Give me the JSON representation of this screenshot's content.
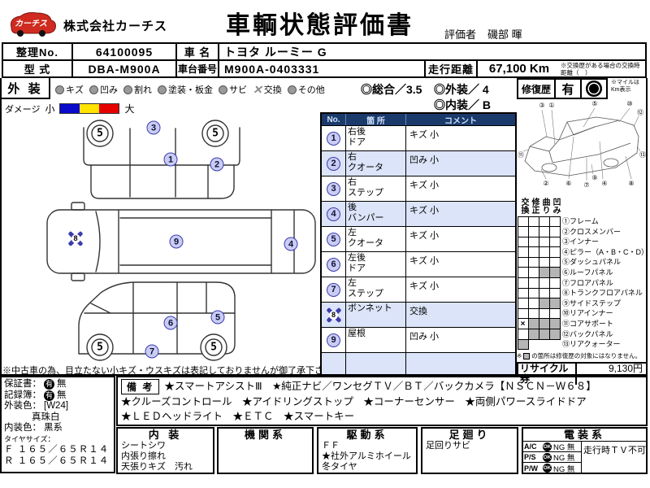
{
  "colors": {
    "table_header": "#1b3a6c",
    "table_header_text": "#d0e0f8",
    "row_shade": "#dbe4f8",
    "marker_fill": "#c9cdf3",
    "marker_border": "#3c3cae",
    "gray_cell": "#b5b5b5",
    "logo_red": "#cf2b20",
    "damage_small": "#0a0acc",
    "damage_mid": "#ffe400",
    "damage_large": "#e60000"
  },
  "header": {
    "logo_text": "カーチス",
    "company": "株式会社カーチス",
    "title": "車輌状態評価書",
    "evaluator_label": "評価者",
    "evaluator_name": "磯部 暉"
  },
  "info": {
    "no_label": "整理No.",
    "no_value": "64100095",
    "car_label": "車 名",
    "car_value": "トヨタ ルーミー G",
    "model_label": "型 式",
    "model_value": "DBA-M900A",
    "chassis_label": "車台番号",
    "chassis_value": "M900A-0403331",
    "mileage_label": "走行距離",
    "mileage_value": "67,100 Km",
    "mileage_note": "※交換歴がある場合の交換時距離（　）"
  },
  "legend": {
    "section_label": "外 装",
    "items": [
      {
        "label": "キズ"
      },
      {
        "label": "凹み"
      },
      {
        "label": "割れ"
      },
      {
        "label": "塗装・板金"
      },
      {
        "label": "サビ"
      },
      {
        "label": "交換"
      },
      {
        "label": "その他"
      }
    ],
    "rating_overall": "◎総合／3.5",
    "rating_exterior": "◎外装／ 4",
    "rating_interior": "◎内装／ B",
    "damage_label": "ダメージ",
    "damage_small": "小",
    "damage_large": "大"
  },
  "repair": {
    "label": "修復歴",
    "value": "有",
    "note": "※マイルはKm表示"
  },
  "damage_table": {
    "headers": [
      "No.",
      "箇 所",
      "コメント"
    ],
    "rows": [
      {
        "no": "1",
        "part": "右後\nドア",
        "comment": "キズ 小"
      },
      {
        "no": "2",
        "part": "右\nクオータ",
        "comment": "凹み 小"
      },
      {
        "no": "3",
        "part": "右\nステップ",
        "comment": "キズ 小"
      },
      {
        "no": "4",
        "part": "後\nバンパー",
        "comment": "キズ 小"
      },
      {
        "no": "5",
        "part": "左\nクオータ",
        "comment": "キズ 小"
      },
      {
        "no": "6",
        "part": "左後\nドア",
        "comment": "キズ 小"
      },
      {
        "no": "7",
        "part": "左\nステップ",
        "comment": "キズ 小"
      },
      {
        "no": "8",
        "part": "ボンネット",
        "comment": "交換"
      },
      {
        "no": "9",
        "part": "屋根",
        "comment": "凹み 小"
      }
    ]
  },
  "diagram": {
    "tread": "5",
    "note": "※中古車の為、目立たない小キズ・ウスキズは表記しておりませんが御了承下さい。"
  },
  "frame_diagram": {
    "callouts": [
      "③",
      "①",
      "⑤",
      "⑩",
      "⑫",
      "⑪",
      "⑬",
      "②",
      "⑥",
      "⑦",
      "⑨",
      "④",
      "⑧"
    ]
  },
  "frame_check": {
    "col_headers": [
      "交換",
      "修正",
      "曲り",
      "凹み"
    ],
    "rows": [
      {
        "label": "①フレーム",
        "cells": [
          "w",
          "w",
          "w",
          "w"
        ]
      },
      {
        "label": "②クロスメンバー",
        "cells": [
          "w",
          "w",
          "w",
          "w"
        ]
      },
      {
        "label": "③インナー",
        "cells": [
          "w",
          "w",
          "w",
          "w"
        ]
      },
      {
        "label": "④ピラー（A・B・C・D）",
        "cells": [
          "w",
          "w",
          "w",
          "w"
        ]
      },
      {
        "label": "⑤ダッシュパネル",
        "cells": [
          "w",
          "w",
          "w",
          "w"
        ]
      },
      {
        "label": "⑥ルーフパネル",
        "cells": [
          "w",
          "w",
          "g",
          "g"
        ]
      },
      {
        "label": "⑦フロアパネル",
        "cells": [
          "w",
          "w",
          "w",
          "w"
        ]
      },
      {
        "label": "⑧トランクフロアパネル",
        "cells": [
          "w",
          "w",
          "w",
          "w"
        ]
      },
      {
        "label": "⑨サイドステップ",
        "cells": [
          "w",
          "w",
          "g",
          "g"
        ]
      },
      {
        "label": "⑩リアインナー",
        "cells": [
          "w",
          "w",
          "w",
          "w"
        ]
      },
      {
        "label": "⑪コアサポート",
        "cells": [
          "x",
          "g",
          "g",
          "g"
        ]
      },
      {
        "label": "⑫バックパネル",
        "cells": [
          "w",
          "g",
          "g",
          "g"
        ]
      },
      {
        "label": "⑬リアクォーター",
        "cells": [
          "g",
          "-",
          "-",
          "-"
        ]
      }
    ],
    "note_prefix": "※",
    "note": "の箇所は修復歴の対象にはなりません。",
    "recycle_label": "リサイクル券",
    "recycle_value": "9,130円"
  },
  "details": {
    "warranty_label": "保証書：",
    "warranty_circled": "有",
    "warranty_after": "無",
    "record_label": "記録簿：",
    "record_circled": "有",
    "record_after": "無",
    "ext_color_label": "外装色：",
    "ext_color_code": "[W24]",
    "ext_color_name": "真珠白",
    "int_color_label": "内装色：",
    "int_color_value": "黒系",
    "tire_label": "タイヤサイズ：",
    "tire_front": "Ｆ １６５／６５Ｒ１４",
    "tire_rear": "Ｒ １６５／６５Ｒ１４"
  },
  "remarks": {
    "label": "備 考",
    "lines": [
      "★スマートアシストⅢ　★純正ナビ／ワンセグＴＶ／ＢＴ／バックカメラ【ＮＳＣＮ－Ｗ６８】",
      "★クルーズコントロール　★アイドリングストップ　★コーナーセンサー　★両側パワースライドドア",
      "★ＬＥＤヘッドライト　★ＥＴＣ　★スマートキー"
    ]
  },
  "sections": {
    "interior": {
      "title": "内 装",
      "lines": [
        "シートシワ",
        "内張り擦れ",
        "天張りキズ　汚れ"
      ]
    },
    "engine": {
      "title": "機関系"
    },
    "drivetrain": {
      "title": "駆動系",
      "lines": [
        "ＦＦ",
        "★社外アルミホイール",
        "冬タイヤ"
      ]
    },
    "suspension": {
      "title": "足廻り",
      "lines": [
        "足回りサビ"
      ]
    },
    "electrical": {
      "title": "電装系",
      "rows": [
        {
          "label": "A/C"
        },
        {
          "label": "P/S"
        },
        {
          "label": "P/W"
        }
      ],
      "ok": "OK",
      "ng": "NG 無",
      "note": "走行時ＴＶ不可"
    }
  }
}
